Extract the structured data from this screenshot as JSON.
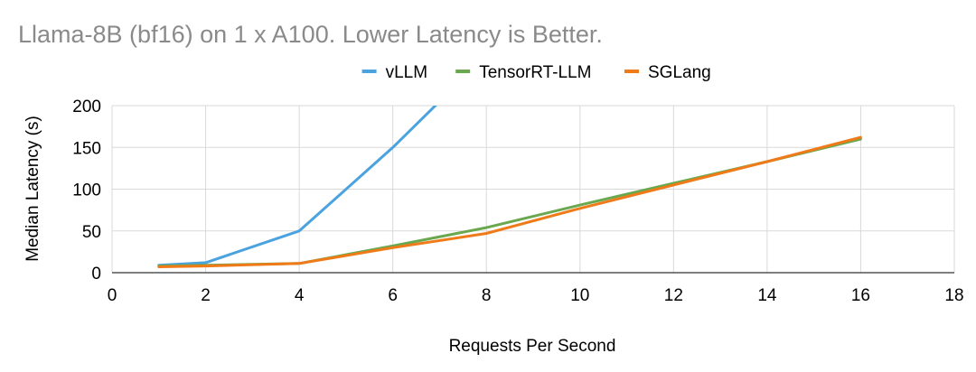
{
  "chart_data": {
    "type": "line",
    "title": "Llama-8B (bf16) on 1 x A100. Lower Latency is Better.",
    "xlabel": "Requests Per Second",
    "ylabel": "Median Latency (s)",
    "xlim": [
      0,
      18
    ],
    "ylim": [
      0,
      200
    ],
    "x_ticks": [
      "0",
      "2",
      "4",
      "6",
      "8",
      "10",
      "12",
      "14",
      "16",
      "18"
    ],
    "y_ticks": [
      "0",
      "50",
      "100",
      "150",
      "200"
    ],
    "grid": true,
    "legend_position": "top",
    "series": [
      {
        "name": "vLLM",
        "color": "#4aa3df",
        "x": [
          1,
          2,
          4,
          6,
          7
        ],
        "y": [
          9,
          12,
          50,
          150,
          205
        ]
      },
      {
        "name": "TensorRT-LLM",
        "color": "#6aa84f",
        "x": [
          1,
          2,
          4,
          6,
          8,
          10,
          12,
          14,
          16
        ],
        "y": [
          8,
          9,
          11,
          32,
          54,
          81,
          107,
          133,
          160
        ]
      },
      {
        "name": "SGLang",
        "color": "#f07a18",
        "x": [
          1,
          2,
          4,
          6,
          8,
          10,
          12,
          14,
          16
        ],
        "y": [
          7,
          8,
          11,
          30,
          47,
          77,
          105,
          133,
          162
        ]
      }
    ]
  }
}
